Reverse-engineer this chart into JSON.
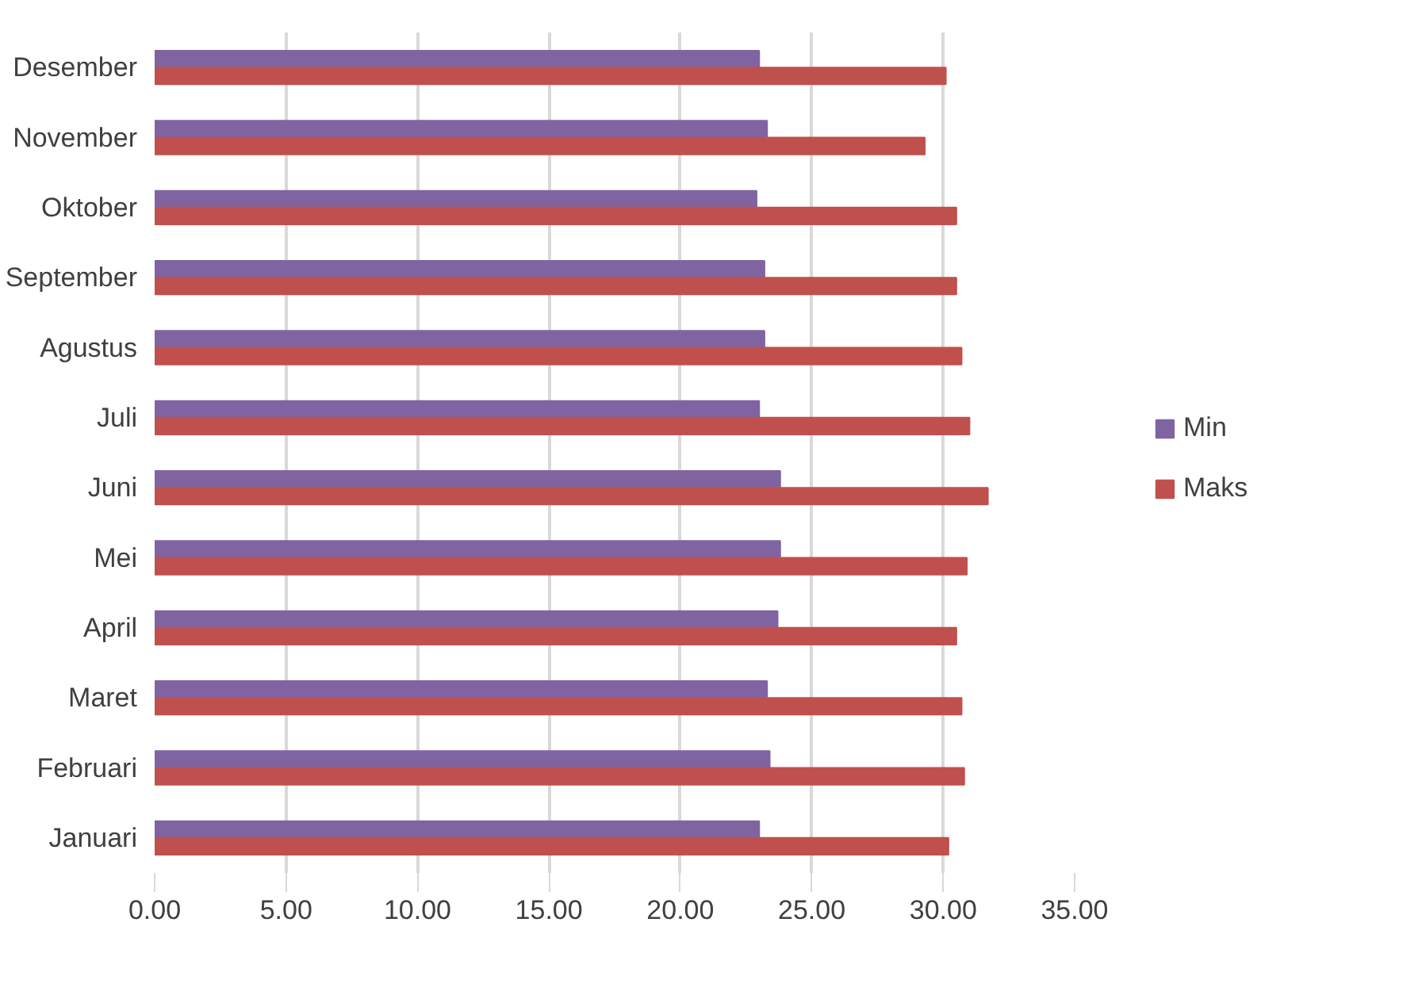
{
  "chart_data": {
    "type": "bar",
    "orientation": "horizontal",
    "categories": [
      "Desember",
      "November",
      "Oktober",
      "September",
      "Agustus",
      "Juli",
      "Juni",
      "Mei",
      "April",
      "Maret",
      "Februari",
      "Januari"
    ],
    "series": [
      {
        "name": "Min",
        "color": "#8064a2",
        "values": [
          23.0,
          23.3,
          22.9,
          23.2,
          23.2,
          23.0,
          23.8,
          23.8,
          23.7,
          23.3,
          23.4,
          23.0
        ]
      },
      {
        "name": "Maks",
        "color": "#c0504d",
        "values": [
          30.1,
          29.3,
          30.5,
          30.5,
          30.7,
          31.0,
          31.7,
          30.9,
          30.5,
          30.7,
          30.8,
          30.2
        ]
      }
    ],
    "xlim": [
      0,
      35
    ],
    "xticks": [
      {
        "value": 0,
        "label": "0.00"
      },
      {
        "value": 5,
        "label": "5.00"
      },
      {
        "value": 10,
        "label": "10.00"
      },
      {
        "value": 15,
        "label": "15.00"
      },
      {
        "value": 20,
        "label": "20.00"
      },
      {
        "value": 25,
        "label": "25.00"
      },
      {
        "value": 30,
        "label": "30.00"
      },
      {
        "value": 35,
        "label": "35.00"
      }
    ],
    "grid": "x",
    "legend": "right"
  }
}
